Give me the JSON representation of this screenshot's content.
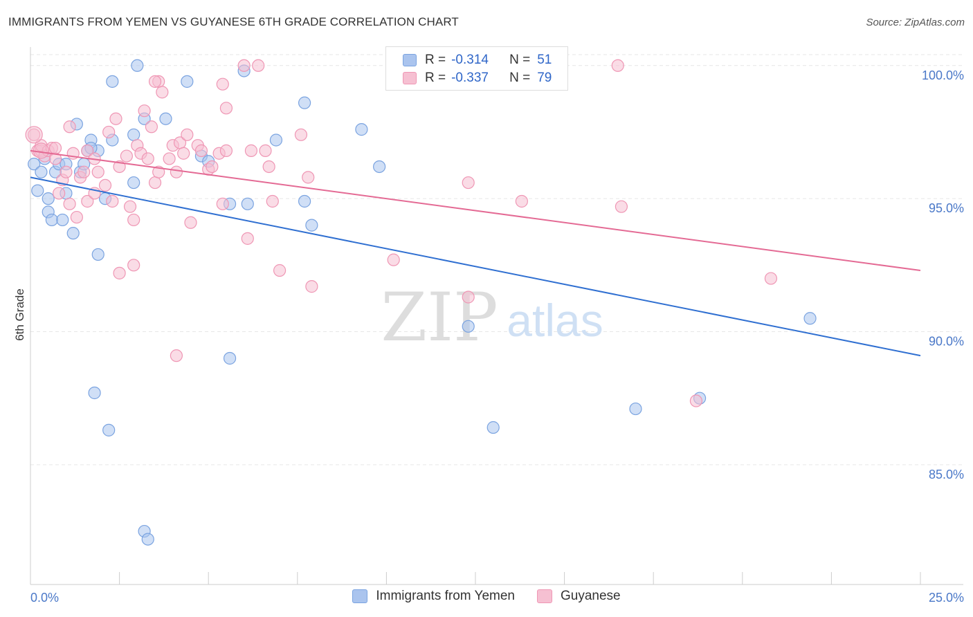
{
  "title": "IMMIGRANTS FROM YEMEN VS GUYANESE 6TH GRADE CORRELATION CHART",
  "source": "Source: ZipAtlas.com",
  "watermark": {
    "zip": "ZIP",
    "atlas": "atlas"
  },
  "legend": {
    "rows": [
      {
        "r_label": "R =",
        "r_value": "-0.314",
        "n_label": "N =",
        "n_value": "51",
        "color": "#aac4ee",
        "border": "#7aa3e0"
      },
      {
        "r_label": "R =",
        "r_value": "-0.337",
        "n_label": "N =",
        "n_value": "79",
        "color": "#f6c0d2",
        "border": "#ef96b4"
      }
    ]
  },
  "bottom_legend": [
    {
      "label": "Immigrants from Yemen",
      "color": "#aac4ee",
      "border": "#7aa3e0"
    },
    {
      "label": "Guyanese",
      "color": "#f6c0d2",
      "border": "#ef96b4"
    }
  ],
  "chart_data": {
    "type": "scatter",
    "title": "IMMIGRANTS FROM YEMEN VS GUYANESE 6TH GRADE CORRELATION CHART",
    "xlabel": "",
    "ylabel": "6th Grade",
    "xlim": [
      0,
      25
    ],
    "ylim": [
      80.5,
      100.8
    ],
    "x_tick_labels": [
      "0.0%",
      "25.0%"
    ],
    "y_ticks": [
      85,
      90,
      95,
      100
    ],
    "y_tick_labels": [
      "85.0%",
      "90.0%",
      "95.0%",
      "100.0%"
    ],
    "grid": true,
    "series": [
      {
        "name": "Immigrants from Yemen",
        "color": "#7aa3e0",
        "fill": "#aac4ee",
        "line_color": "#2f6fd1",
        "trend": [
          [
            0,
            95.8
          ],
          [
            25,
            89.1
          ]
        ],
        "points": [
          [
            0.1,
            96.3
          ],
          [
            0.2,
            95.3
          ],
          [
            0.3,
            96.0
          ],
          [
            0.4,
            96.5
          ],
          [
            0.5,
            94.5
          ],
          [
            0.5,
            95.0
          ],
          [
            0.6,
            94.2
          ],
          [
            0.7,
            96.0
          ],
          [
            0.8,
            96.3
          ],
          [
            0.9,
            94.2
          ],
          [
            1.0,
            95.2
          ],
          [
            1.0,
            96.3
          ],
          [
            1.2,
            93.7
          ],
          [
            1.3,
            97.8
          ],
          [
            1.4,
            96.0
          ],
          [
            1.5,
            96.3
          ],
          [
            1.6,
            96.8
          ],
          [
            1.7,
            97.2
          ],
          [
            1.9,
            92.9
          ],
          [
            1.9,
            96.8
          ],
          [
            2.1,
            95.0
          ],
          [
            2.3,
            97.2
          ],
          [
            2.3,
            99.4
          ],
          [
            2.2,
            86.3
          ],
          [
            1.8,
            87.7
          ],
          [
            2.9,
            95.6
          ],
          [
            3.0,
            100.0
          ],
          [
            2.9,
            97.4
          ],
          [
            3.2,
            98.0
          ],
          [
            3.2,
            82.5
          ],
          [
            3.3,
            82.2
          ],
          [
            3.8,
            98.0
          ],
          [
            4.4,
            99.4
          ],
          [
            4.8,
            96.6
          ],
          [
            5.0,
            96.4
          ],
          [
            5.6,
            94.8
          ],
          [
            6.0,
            99.8
          ],
          [
            6.1,
            94.8
          ],
          [
            5.6,
            89.0
          ],
          [
            6.9,
            97.2
          ],
          [
            7.7,
            98.6
          ],
          [
            7.7,
            94.9
          ],
          [
            7.9,
            94.0
          ],
          [
            9.3,
            97.6
          ],
          [
            9.8,
            96.2
          ],
          [
            12.3,
            90.2
          ],
          [
            13.0,
            86.4
          ],
          [
            17.0,
            87.1
          ],
          [
            18.8,
            87.5
          ],
          [
            21.9,
            90.5
          ],
          [
            1.7,
            96.9
          ]
        ]
      },
      {
        "name": "Guyanese",
        "color": "#ef96b4",
        "fill": "#f6c0d2",
        "line_color": "#e46a94",
        "trend": [
          [
            0,
            96.8
          ],
          [
            25,
            92.3
          ]
        ],
        "points": [
          [
            0.1,
            97.4
          ],
          [
            0.2,
            96.8
          ],
          [
            0.3,
            96.8
          ],
          [
            0.4,
            96.6
          ],
          [
            0.3,
            97.0
          ],
          [
            0.5,
            96.8
          ],
          [
            0.6,
            96.9
          ],
          [
            0.7,
            96.5
          ],
          [
            0.8,
            95.2
          ],
          [
            0.9,
            95.7
          ],
          [
            1.0,
            96.0
          ],
          [
            1.1,
            94.8
          ],
          [
            1.2,
            96.7
          ],
          [
            1.3,
            94.3
          ],
          [
            1.4,
            95.8
          ],
          [
            1.5,
            96.0
          ],
          [
            1.6,
            94.9
          ],
          [
            1.6,
            96.8
          ],
          [
            1.8,
            96.5
          ],
          [
            1.8,
            95.2
          ],
          [
            1.9,
            96.0
          ],
          [
            2.1,
            95.5
          ],
          [
            2.2,
            97.5
          ],
          [
            2.3,
            94.9
          ],
          [
            2.4,
            98.0
          ],
          [
            2.5,
            96.2
          ],
          [
            2.7,
            96.6
          ],
          [
            2.8,
            94.7
          ],
          [
            2.9,
            94.2
          ],
          [
            3.0,
            97.0
          ],
          [
            3.1,
            96.7
          ],
          [
            3.2,
            98.3
          ],
          [
            3.3,
            96.5
          ],
          [
            3.4,
            97.7
          ],
          [
            3.5,
            95.6
          ],
          [
            3.6,
            96.0
          ],
          [
            3.6,
            99.4
          ],
          [
            3.7,
            99.0
          ],
          [
            3.9,
            96.5
          ],
          [
            4.0,
            97.0
          ],
          [
            4.1,
            96.0
          ],
          [
            4.2,
            97.1
          ],
          [
            4.3,
            96.7
          ],
          [
            4.4,
            97.4
          ],
          [
            4.5,
            94.1
          ],
          [
            4.7,
            97.0
          ],
          [
            4.8,
            96.8
          ],
          [
            5.0,
            96.1
          ],
          [
            5.1,
            96.2
          ],
          [
            5.3,
            96.7
          ],
          [
            5.4,
            94.8
          ],
          [
            5.5,
            96.8
          ],
          [
            5.5,
            98.4
          ],
          [
            6.0,
            100.0
          ],
          [
            6.1,
            93.5
          ],
          [
            6.2,
            96.8
          ],
          [
            6.4,
            100.0
          ],
          [
            6.6,
            96.8
          ],
          [
            6.7,
            96.2
          ],
          [
            6.8,
            94.9
          ],
          [
            7.0,
            92.3
          ],
          [
            7.6,
            97.4
          ],
          [
            7.8,
            95.8
          ],
          [
            7.9,
            91.7
          ],
          [
            5.4,
            99.3
          ],
          [
            3.5,
            99.4
          ],
          [
            10.2,
            92.7
          ],
          [
            12.3,
            91.3
          ],
          [
            12.3,
            95.6
          ],
          [
            13.8,
            94.9
          ],
          [
            16.5,
            100.0
          ],
          [
            16.6,
            94.7
          ],
          [
            18.7,
            87.4
          ],
          [
            20.8,
            92.0
          ],
          [
            4.1,
            89.1
          ],
          [
            2.5,
            92.2
          ],
          [
            2.9,
            92.5
          ],
          [
            1.1,
            97.7
          ],
          [
            0.7,
            96.9
          ]
        ]
      }
    ]
  }
}
